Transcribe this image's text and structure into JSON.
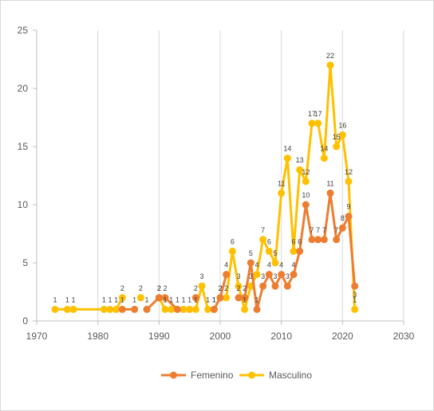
{
  "chart_data": {
    "type": "line",
    "title": "",
    "xlabel": "",
    "ylabel": "",
    "xlim": [
      1970,
      2030
    ],
    "ylim": [
      0,
      25
    ],
    "x_ticks": [
      1970,
      1980,
      1990,
      2000,
      2010,
      2020,
      2030
    ],
    "y_ticks": [
      0,
      5,
      10,
      15,
      20,
      25
    ],
    "grid": "vertical-major",
    "legend_position": "bottom",
    "series": [
      {
        "name": "Masculino",
        "color": "#FFC000",
        "segments": [
          [
            [
              1973,
              1
            ],
            [
              1975,
              1
            ],
            [
              1976,
              1
            ],
            [
              1981,
              1
            ],
            [
              1982,
              1
            ],
            [
              1983,
              1
            ],
            [
              1984,
              2
            ]
          ],
          [
            [
              1987,
              2
            ]
          ],
          [
            [
              1990,
              2
            ],
            [
              1991,
              1
            ],
            [
              1992,
              1
            ]
          ],
          [
            [
              1994,
              1
            ],
            [
              1995,
              1
            ],
            [
              1996,
              1
            ],
            [
              1997,
              3
            ],
            [
              1998,
              1
            ],
            [
              1999,
              1
            ],
            [
              2000,
              2
            ],
            [
              2001,
              2
            ],
            [
              2002,
              6
            ],
            [
              2003,
              3
            ],
            [
              2004,
              1
            ],
            [
              2005,
              3
            ],
            [
              2006,
              4
            ],
            [
              2007,
              7
            ],
            [
              2008,
              6
            ],
            [
              2009,
              5
            ],
            [
              2010,
              11
            ],
            [
              2011,
              14
            ],
            [
              2012,
              6
            ],
            [
              2013,
              13
            ],
            [
              2014,
              12
            ],
            [
              2015,
              17
            ],
            [
              2016,
              17
            ],
            [
              2017,
              14
            ],
            [
              2018,
              22
            ],
            [
              2019,
              15
            ],
            [
              2020,
              16
            ],
            [
              2021,
              12
            ],
            [
              2022,
              1
            ]
          ]
        ]
      },
      {
        "name": "Femenino",
        "color": "#ED7D31",
        "segments": [
          [
            [
              1984,
              1
            ],
            [
              1986,
              1
            ]
          ],
          [
            [
              1988,
              1
            ],
            [
              1990,
              2
            ],
            [
              1991,
              2
            ],
            [
              1993,
              1
            ]
          ],
          [
            [
              1996,
              2
            ]
          ],
          [
            [
              1999,
              1
            ],
            [
              2000,
              2
            ],
            [
              2001,
              4
            ]
          ],
          [
            [
              2003,
              2
            ],
            [
              2004,
              2
            ],
            [
              2005,
              5
            ],
            [
              2006,
              1
            ],
            [
              2007,
              3
            ],
            [
              2008,
              4
            ],
            [
              2009,
              3
            ],
            [
              2010,
              4
            ],
            [
              2011,
              3
            ],
            [
              2012,
              4
            ],
            [
              2013,
              6
            ],
            [
              2014,
              10
            ],
            [
              2015,
              7
            ],
            [
              2016,
              7
            ],
            [
              2017,
              7
            ],
            [
              2018,
              11
            ],
            [
              2019,
              7
            ],
            [
              2020,
              8
            ],
            [
              2021,
              9
            ],
            [
              2022,
              3
            ]
          ]
        ]
      }
    ],
    "legend_entries": [
      "Femenino",
      "Masculino"
    ]
  }
}
